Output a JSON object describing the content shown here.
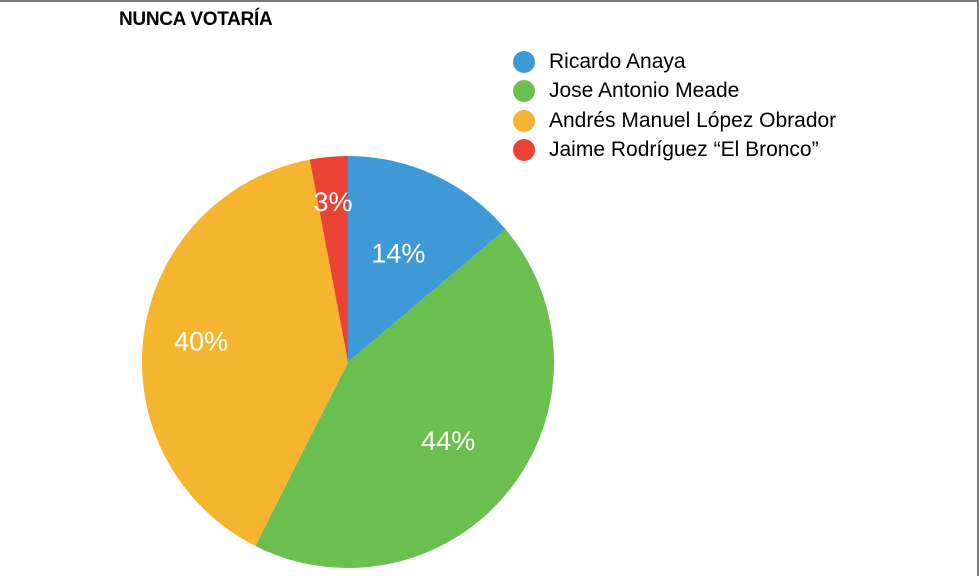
{
  "title": "NUNCA VOTARÍA",
  "chart_data": {
    "type": "pie",
    "title": "NUNCA VOTARÍA",
    "legend_position": "top-right",
    "slices": [
      {
        "label": "Ricardo Anaya",
        "value": 14,
        "display": "14%",
        "color": "#3d9ad6"
      },
      {
        "label": "Jose Antonio Meade",
        "value": 44,
        "display": "44%",
        "color": "#6bbf4e"
      },
      {
        "label": "Andrés Manuel López Obrador",
        "value": 40,
        "display": "40%",
        "color": "#f6b52e"
      },
      {
        "label": "Jaime Rodríguez “El Bronco”",
        "value": 3,
        "display": "3%",
        "color": "#ea4335"
      }
    ]
  }
}
